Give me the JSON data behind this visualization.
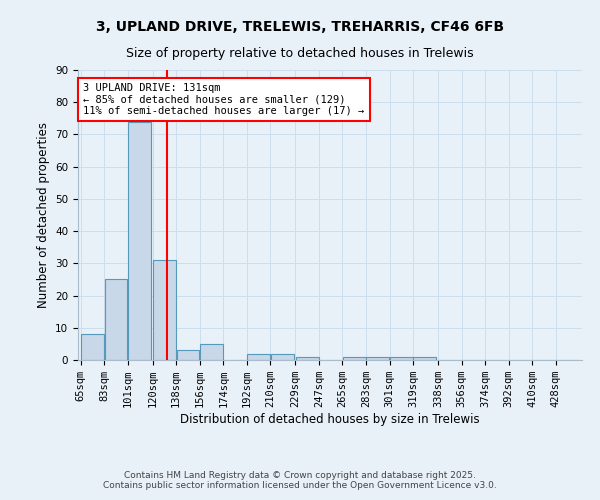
{
  "title1": "3, UPLAND DRIVE, TRELEWIS, TREHARRIS, CF46 6FB",
  "title2": "Size of property relative to detached houses in Trelewis",
  "xlabel": "Distribution of detached houses by size in Trelewis",
  "ylabel": "Number of detached properties",
  "categories": [
    "65sqm",
    "83sqm",
    "101sqm",
    "120sqm",
    "138sqm",
    "156sqm",
    "174sqm",
    "192sqm",
    "210sqm",
    "229sqm",
    "247sqm",
    "265sqm",
    "283sqm",
    "301sqm",
    "319sqm",
    "338sqm",
    "356sqm",
    "374sqm",
    "392sqm",
    "410sqm",
    "428sqm"
  ],
  "values": [
    8,
    25,
    74,
    31,
    3,
    5,
    0,
    2,
    2,
    1,
    0,
    1,
    1,
    1,
    1,
    0,
    0,
    0,
    0,
    0,
    0
  ],
  "bin_width": 18,
  "bin_starts": [
    65,
    83,
    101,
    120,
    138,
    156,
    174,
    192,
    210,
    229,
    247,
    265,
    283,
    301,
    319,
    338,
    356,
    374,
    392,
    410,
    428
  ],
  "bar_color": "#c8d8e8",
  "bar_edge_color": "#5599bb",
  "red_line_x": 131,
  "annotation_text": "3 UPLAND DRIVE: 131sqm\n← 85% of detached houses are smaller (129)\n11% of semi-detached houses are larger (17) →",
  "annotation_box_color": "white",
  "annotation_box_edge_color": "red",
  "red_line_color": "red",
  "ylim": [
    0,
    90
  ],
  "yticks": [
    0,
    10,
    20,
    30,
    40,
    50,
    60,
    70,
    80,
    90
  ],
  "grid_color": "#ccddee",
  "background_color": "#e8f0f8",
  "footer_text": "Contains HM Land Registry data © Crown copyright and database right 2025.\nContains public sector information licensed under the Open Government Licence v3.0.",
  "title_fontsize": 10,
  "subtitle_fontsize": 9,
  "annotation_fontsize": 7.5,
  "axis_label_fontsize": 8.5,
  "tick_fontsize": 7.5,
  "footer_fontsize": 6.5
}
